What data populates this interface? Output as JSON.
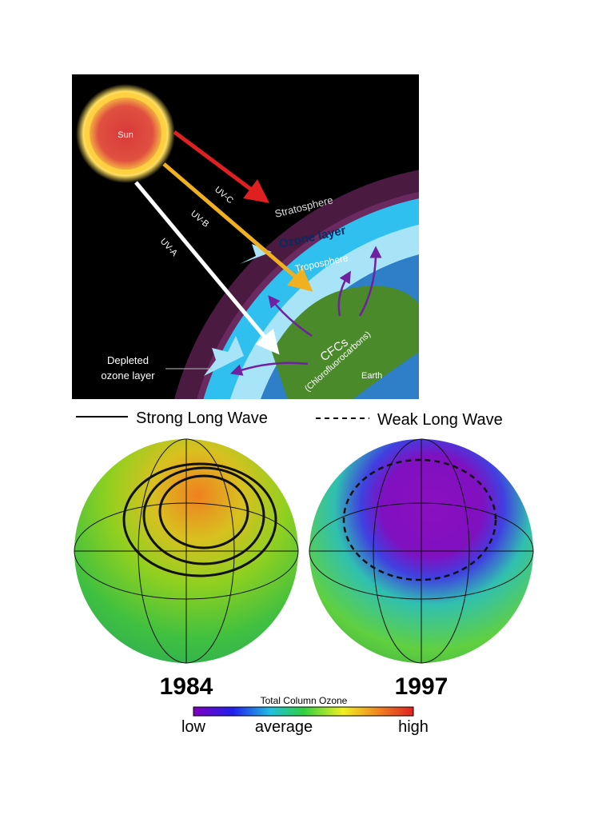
{
  "diagram": {
    "sun": "Sun",
    "uv_c": "UV-C",
    "uv_b": "UV-B",
    "uv_a": "UV-A",
    "stratosphere": "Stratosphere",
    "ozone_layer": "Ozone layer",
    "troposphere": "Troposphere",
    "cfcs": "CFCs",
    "cfcs_full": "(Chlorofluorocarbons)",
    "earth": "Earth",
    "depleted": [
      "Depleted",
      "ozone layer"
    ]
  },
  "legend": {
    "strong": "Strong Long Wave",
    "weak": "Weak Long Wave"
  },
  "maps": {
    "left_year": "1984",
    "right_year": "1997"
  },
  "colorbar": {
    "title": "Total Column Ozone",
    "low": "low",
    "average": "average",
    "high": "high"
  }
}
